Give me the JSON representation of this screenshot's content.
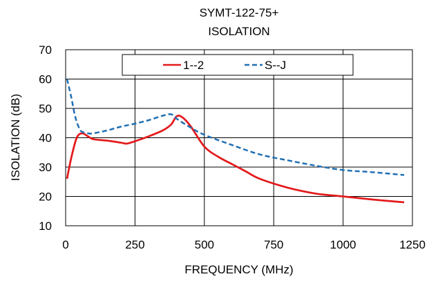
{
  "chart_data": {
    "type": "line",
    "title": [
      "SYMT-122-75+",
      "ISOLATION"
    ],
    "xlabel": "FREQUENCY (MHz)",
    "ylabel": "ISOLATION (dB)",
    "xlim": [
      0,
      1250
    ],
    "ylim": [
      10,
      70
    ],
    "xticks": [
      0,
      250,
      500,
      750,
      1000,
      1250
    ],
    "yticks": [
      10,
      20,
      30,
      40,
      50,
      60,
      70
    ],
    "grid": true,
    "legend_position": "top",
    "series": [
      {
        "name": "1--2",
        "color": "#e31a1c",
        "style": "solid",
        "x": [
          5,
          20,
          40,
          60,
          80,
          100,
          150,
          200,
          220,
          250,
          300,
          350,
          380,
          400,
          420,
          450,
          500,
          550,
          600,
          650,
          700,
          800,
          900,
          1000,
          1100,
          1220
        ],
        "y": [
          26,
          33,
          40,
          41.5,
          40.5,
          39.5,
          39,
          38.3,
          38,
          38.8,
          40.5,
          42.5,
          44.5,
          47.3,
          47,
          44,
          37,
          33.5,
          31,
          28.5,
          26,
          23,
          21,
          20,
          19,
          18
        ]
      },
      {
        "name": "S--J",
        "color": "#1f6fb4",
        "style": "dashed",
        "x": [
          5,
          20,
          35,
          50,
          60,
          80,
          100,
          150,
          200,
          250,
          300,
          350,
          380,
          400,
          450,
          500,
          600,
          700,
          800,
          900,
          1000,
          1100,
          1220
        ],
        "y": [
          60,
          54,
          47,
          43,
          42,
          41.5,
          41.5,
          42.5,
          43.8,
          44.8,
          46,
          47.5,
          48,
          46.5,
          43.5,
          41,
          37.5,
          34.3,
          32.3,
          30.5,
          29,
          28.3,
          27.3
        ]
      }
    ]
  }
}
